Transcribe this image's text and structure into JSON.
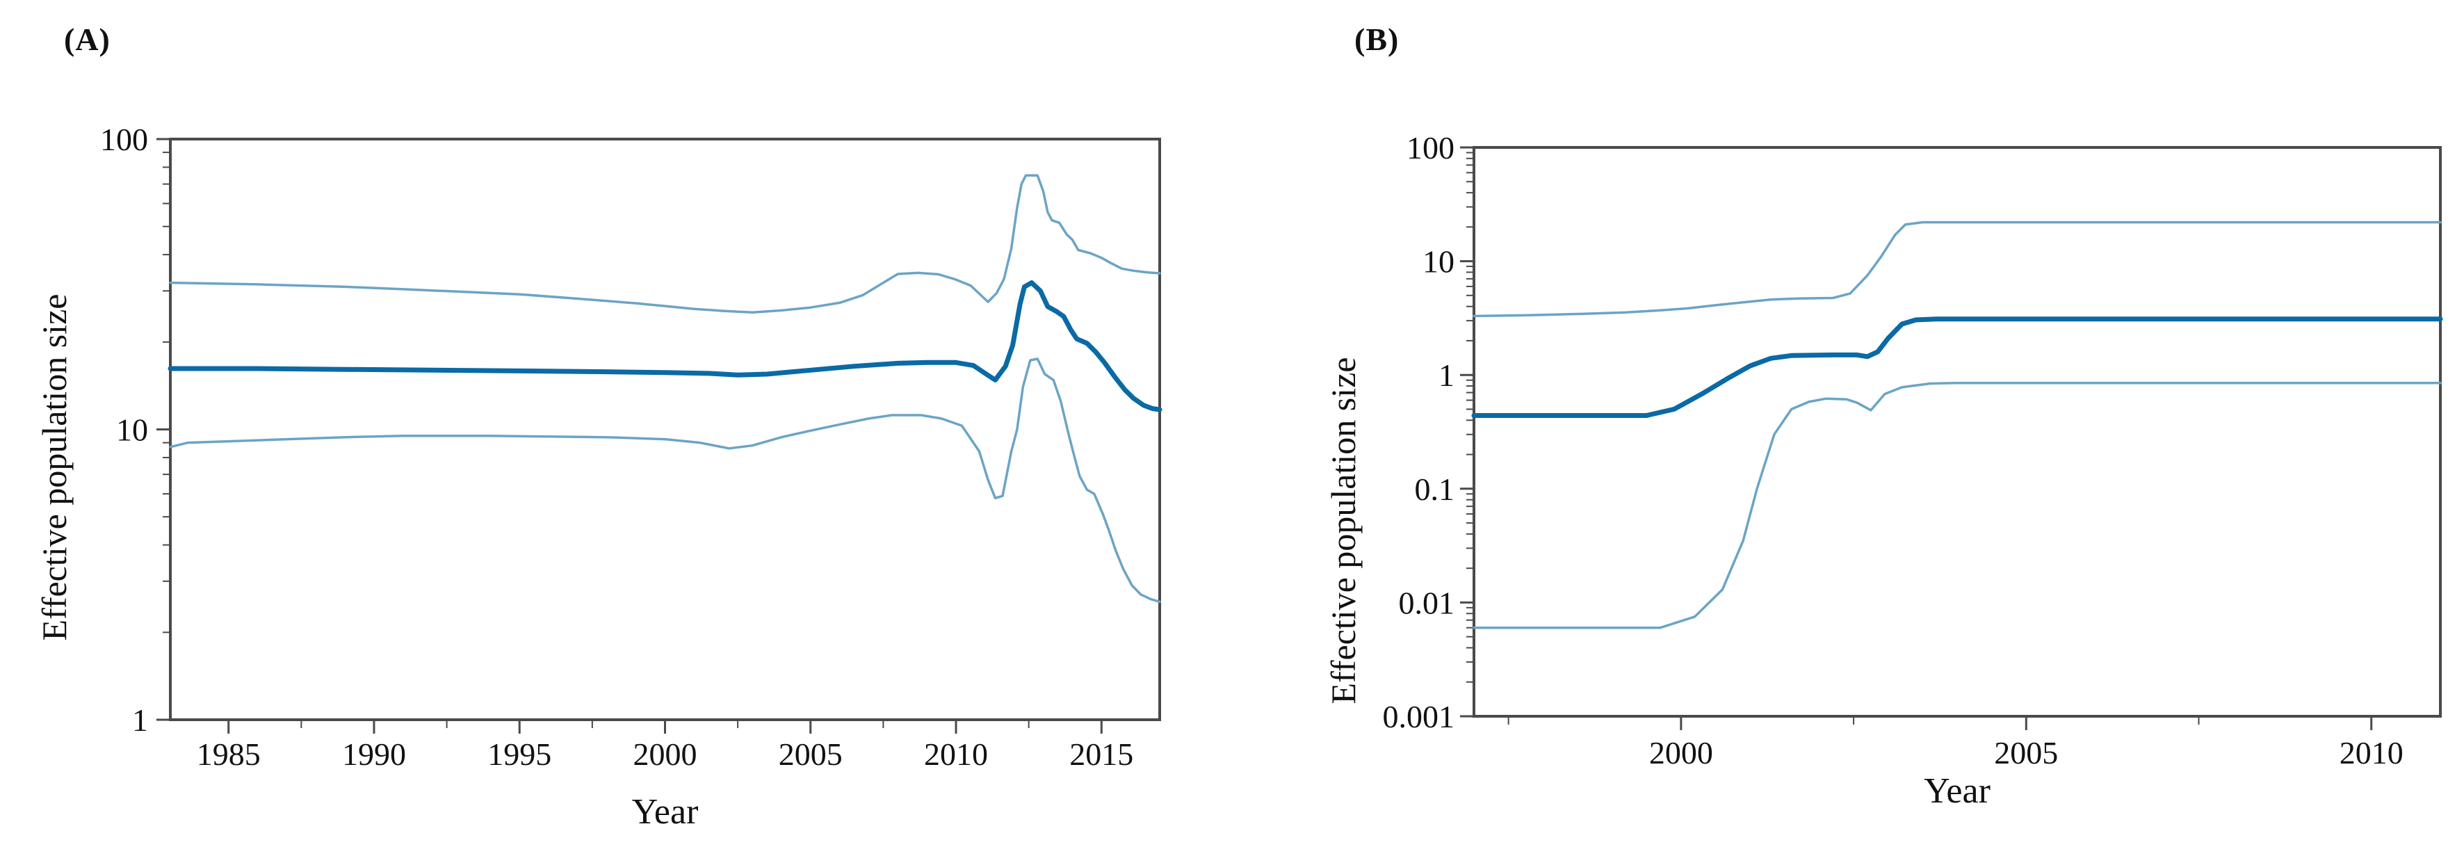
{
  "figure": {
    "background": "#ffffff",
    "text_color": "#111111",
    "axis_color": "#4a4a4a"
  },
  "colors": {
    "median_line": "#0a6aa6",
    "interval_line": "#6ba4c6"
  },
  "chart_data": [
    {
      "id": "A",
      "type": "line",
      "title": "(A)",
      "xlabel": "Year",
      "ylabel": "Effective population size",
      "x_scale": "linear",
      "y_scale": "log10",
      "xlim": [
        1983,
        2017
      ],
      "ylim": [
        1,
        100
      ],
      "grid": "off",
      "legend": "none",
      "x_major_ticks": [
        1985,
        1990,
        1995,
        2000,
        2005,
        2010,
        2015
      ],
      "x_minor_ticks": [
        1987.5,
        1992.5,
        1997.5,
        2002.5,
        2007.5,
        2012.5
      ],
      "y_major_ticks": [
        1,
        10,
        100
      ],
      "y_tick_labels": [
        "1",
        "10",
        "100"
      ],
      "series": [
        {
          "name": "median",
          "role": "posterior-median",
          "style": "thick",
          "points": [
            [
              1983,
              16.2
            ],
            [
              1986,
              16.2
            ],
            [
              1989,
              16.1
            ],
            [
              1992,
              16.0
            ],
            [
              1995,
              15.9
            ],
            [
              1998,
              15.8
            ],
            [
              2000,
              15.7
            ],
            [
              2001.5,
              15.6
            ],
            [
              2002.5,
              15.4
            ],
            [
              2003.5,
              15.5
            ],
            [
              2005,
              16.0
            ],
            [
              2006.5,
              16.5
            ],
            [
              2008,
              16.9
            ],
            [
              2009,
              17.0
            ],
            [
              2010,
              17.0
            ],
            [
              2010.6,
              16.6
            ],
            [
              2011.0,
              15.6
            ],
            [
              2011.35,
              14.8
            ],
            [
              2011.7,
              16.5
            ],
            [
              2011.95,
              19.5
            ],
            [
              2012.2,
              27
            ],
            [
              2012.35,
              31
            ],
            [
              2012.6,
              32
            ],
            [
              2012.9,
              30
            ],
            [
              2013.15,
              26.5
            ],
            [
              2013.45,
              25.5
            ],
            [
              2013.7,
              24.5
            ],
            [
              2013.95,
              22
            ],
            [
              2014.15,
              20.5
            ],
            [
              2014.5,
              19.8
            ],
            [
              2014.8,
              18.5
            ],
            [
              2015.1,
              17
            ],
            [
              2015.45,
              15.2
            ],
            [
              2015.8,
              13.7
            ],
            [
              2016.1,
              12.8
            ],
            [
              2016.45,
              12.1
            ],
            [
              2016.75,
              11.8
            ],
            [
              2017,
              11.7
            ]
          ]
        },
        {
          "name": "upper-95-HPD",
          "role": "credible-interval-upper",
          "style": "thin",
          "points": [
            [
              1983,
              32
            ],
            [
              1986,
              31.6
            ],
            [
              1989,
              31
            ],
            [
              1991,
              30.4
            ],
            [
              1993,
              29.8
            ],
            [
              1995,
              29.2
            ],
            [
              1997,
              28.2
            ],
            [
              1999,
              27.2
            ],
            [
              2000,
              26.6
            ],
            [
              2001,
              26.0
            ],
            [
              2002,
              25.6
            ],
            [
              2003,
              25.3
            ],
            [
              2004,
              25.7
            ],
            [
              2005,
              26.3
            ],
            [
              2006,
              27.3
            ],
            [
              2006.8,
              29
            ],
            [
              2007.5,
              32
            ],
            [
              2008,
              34.3
            ],
            [
              2008.7,
              34.6
            ],
            [
              2009.4,
              34.2
            ],
            [
              2010,
              32.8
            ],
            [
              2010.5,
              31.3
            ],
            [
              2011.1,
              27.5
            ],
            [
              2011.4,
              29.5
            ],
            [
              2011.65,
              33
            ],
            [
              2011.9,
              42
            ],
            [
              2012.1,
              58
            ],
            [
              2012.25,
              70
            ],
            [
              2012.4,
              75
            ],
            [
              2012.8,
              75
            ],
            [
              2013.0,
              66
            ],
            [
              2013.15,
              56
            ],
            [
              2013.3,
              52.5
            ],
            [
              2013.55,
              51.5
            ],
            [
              2013.8,
              47
            ],
            [
              2014.0,
              45
            ],
            [
              2014.2,
              41.5
            ],
            [
              2014.6,
              40.5
            ],
            [
              2015.0,
              39
            ],
            [
              2015.3,
              37.5
            ],
            [
              2015.7,
              35.8
            ],
            [
              2016.1,
              35.2
            ],
            [
              2016.5,
              34.8
            ],
            [
              2017,
              34.5
            ]
          ]
        },
        {
          "name": "lower-95-HPD",
          "role": "credible-interval-lower",
          "style": "thin",
          "points": [
            [
              1983,
              8.7
            ],
            [
              1983.6,
              9.0
            ],
            [
              1985,
              9.1
            ],
            [
              1987,
              9.25
            ],
            [
              1989,
              9.4
            ],
            [
              1991,
              9.5
            ],
            [
              1994,
              9.5
            ],
            [
              1996,
              9.45
            ],
            [
              1998,
              9.4
            ],
            [
              2000,
              9.25
            ],
            [
              2001.2,
              9.0
            ],
            [
              2002.2,
              8.6
            ],
            [
              2003,
              8.8
            ],
            [
              2004,
              9.4
            ],
            [
              2005,
              9.9
            ],
            [
              2006,
              10.4
            ],
            [
              2007,
              10.9
            ],
            [
              2007.8,
              11.2
            ],
            [
              2008.8,
              11.2
            ],
            [
              2009.5,
              10.9
            ],
            [
              2010.2,
              10.3
            ],
            [
              2010.8,
              8.4
            ],
            [
              2011.1,
              6.7
            ],
            [
              2011.35,
              5.8
            ],
            [
              2011.6,
              5.9
            ],
            [
              2011.9,
              8.4
            ],
            [
              2012.1,
              10
            ],
            [
              2012.3,
              14
            ],
            [
              2012.55,
              17.3
            ],
            [
              2012.8,
              17.5
            ],
            [
              2013.05,
              15.5
            ],
            [
              2013.35,
              14.8
            ],
            [
              2013.6,
              12.5
            ],
            [
              2013.85,
              9.8
            ],
            [
              2014.05,
              8.2
            ],
            [
              2014.25,
              6.9
            ],
            [
              2014.5,
              6.2
            ],
            [
              2014.75,
              6.0
            ],
            [
              2015.05,
              5.1
            ],
            [
              2015.25,
              4.5
            ],
            [
              2015.5,
              3.8
            ],
            [
              2015.75,
              3.3
            ],
            [
              2016.05,
              2.9
            ],
            [
              2016.35,
              2.7
            ],
            [
              2016.7,
              2.6
            ],
            [
              2017,
              2.55
            ]
          ]
        }
      ]
    },
    {
      "id": "B",
      "type": "line",
      "title": "(B)",
      "xlabel": "Year",
      "ylabel": "Effective population size",
      "x_scale": "linear",
      "y_scale": "log10",
      "xlim": [
        1997,
        2011
      ],
      "ylim": [
        0.001,
        100
      ],
      "grid": "off",
      "legend": "none",
      "x_major_ticks": [
        2000,
        2005,
        2010
      ],
      "x_minor_ticks": [
        1997.5,
        2002.5,
        2007.5
      ],
      "y_major_ticks": [
        0.001,
        0.01,
        0.1,
        1,
        10,
        100
      ],
      "y_tick_labels": [
        "0.001",
        "0.01",
        "0.1",
        "1",
        "10",
        "100"
      ],
      "series": [
        {
          "name": "median",
          "role": "posterior-median",
          "style": "thick",
          "points": [
            [
              1997,
              0.44
            ],
            [
              1999.5,
              0.44
            ],
            [
              1999.9,
              0.5
            ],
            [
              2000.3,
              0.68
            ],
            [
              2000.7,
              0.95
            ],
            [
              2001.0,
              1.2
            ],
            [
              2001.3,
              1.4
            ],
            [
              2001.6,
              1.48
            ],
            [
              2002.2,
              1.5
            ],
            [
              2002.55,
              1.5
            ],
            [
              2002.7,
              1.45
            ],
            [
              2002.85,
              1.6
            ],
            [
              2003.0,
              2.1
            ],
            [
              2003.2,
              2.8
            ],
            [
              2003.4,
              3.05
            ],
            [
              2003.7,
              3.1
            ],
            [
              2011,
              3.1
            ]
          ]
        },
        {
          "name": "upper-95-HPD",
          "role": "credible-interval-upper",
          "style": "thin",
          "points": [
            [
              1997,
              3.3
            ],
            [
              1997.8,
              3.35
            ],
            [
              1998.6,
              3.45
            ],
            [
              1999.2,
              3.55
            ],
            [
              1999.7,
              3.7
            ],
            [
              2000.1,
              3.85
            ],
            [
              2000.5,
              4.1
            ],
            [
              2000.9,
              4.35
            ],
            [
              2001.3,
              4.6
            ],
            [
              2001.7,
              4.7
            ],
            [
              2002.2,
              4.75
            ],
            [
              2002.45,
              5.2
            ],
            [
              2002.7,
              7.5
            ],
            [
              2002.9,
              11
            ],
            [
              2003.1,
              17
            ],
            [
              2003.25,
              21
            ],
            [
              2003.5,
              22
            ],
            [
              2011,
              22
            ]
          ]
        },
        {
          "name": "lower-95-HPD",
          "role": "credible-interval-lower",
          "style": "thin",
          "points": [
            [
              1997,
              0.006
            ],
            [
              1999.7,
              0.006
            ],
            [
              2000.2,
              0.0075
            ],
            [
              2000.6,
              0.013
            ],
            [
              2000.9,
              0.035
            ],
            [
              2001.1,
              0.1
            ],
            [
              2001.35,
              0.3
            ],
            [
              2001.6,
              0.5
            ],
            [
              2001.85,
              0.58
            ],
            [
              2002.1,
              0.62
            ],
            [
              2002.4,
              0.61
            ],
            [
              2002.55,
              0.57
            ],
            [
              2002.75,
              0.49
            ],
            [
              2002.95,
              0.68
            ],
            [
              2003.2,
              0.78
            ],
            [
              2003.6,
              0.84
            ],
            [
              2004,
              0.85
            ],
            [
              2011,
              0.85
            ]
          ]
        }
      ]
    }
  ]
}
